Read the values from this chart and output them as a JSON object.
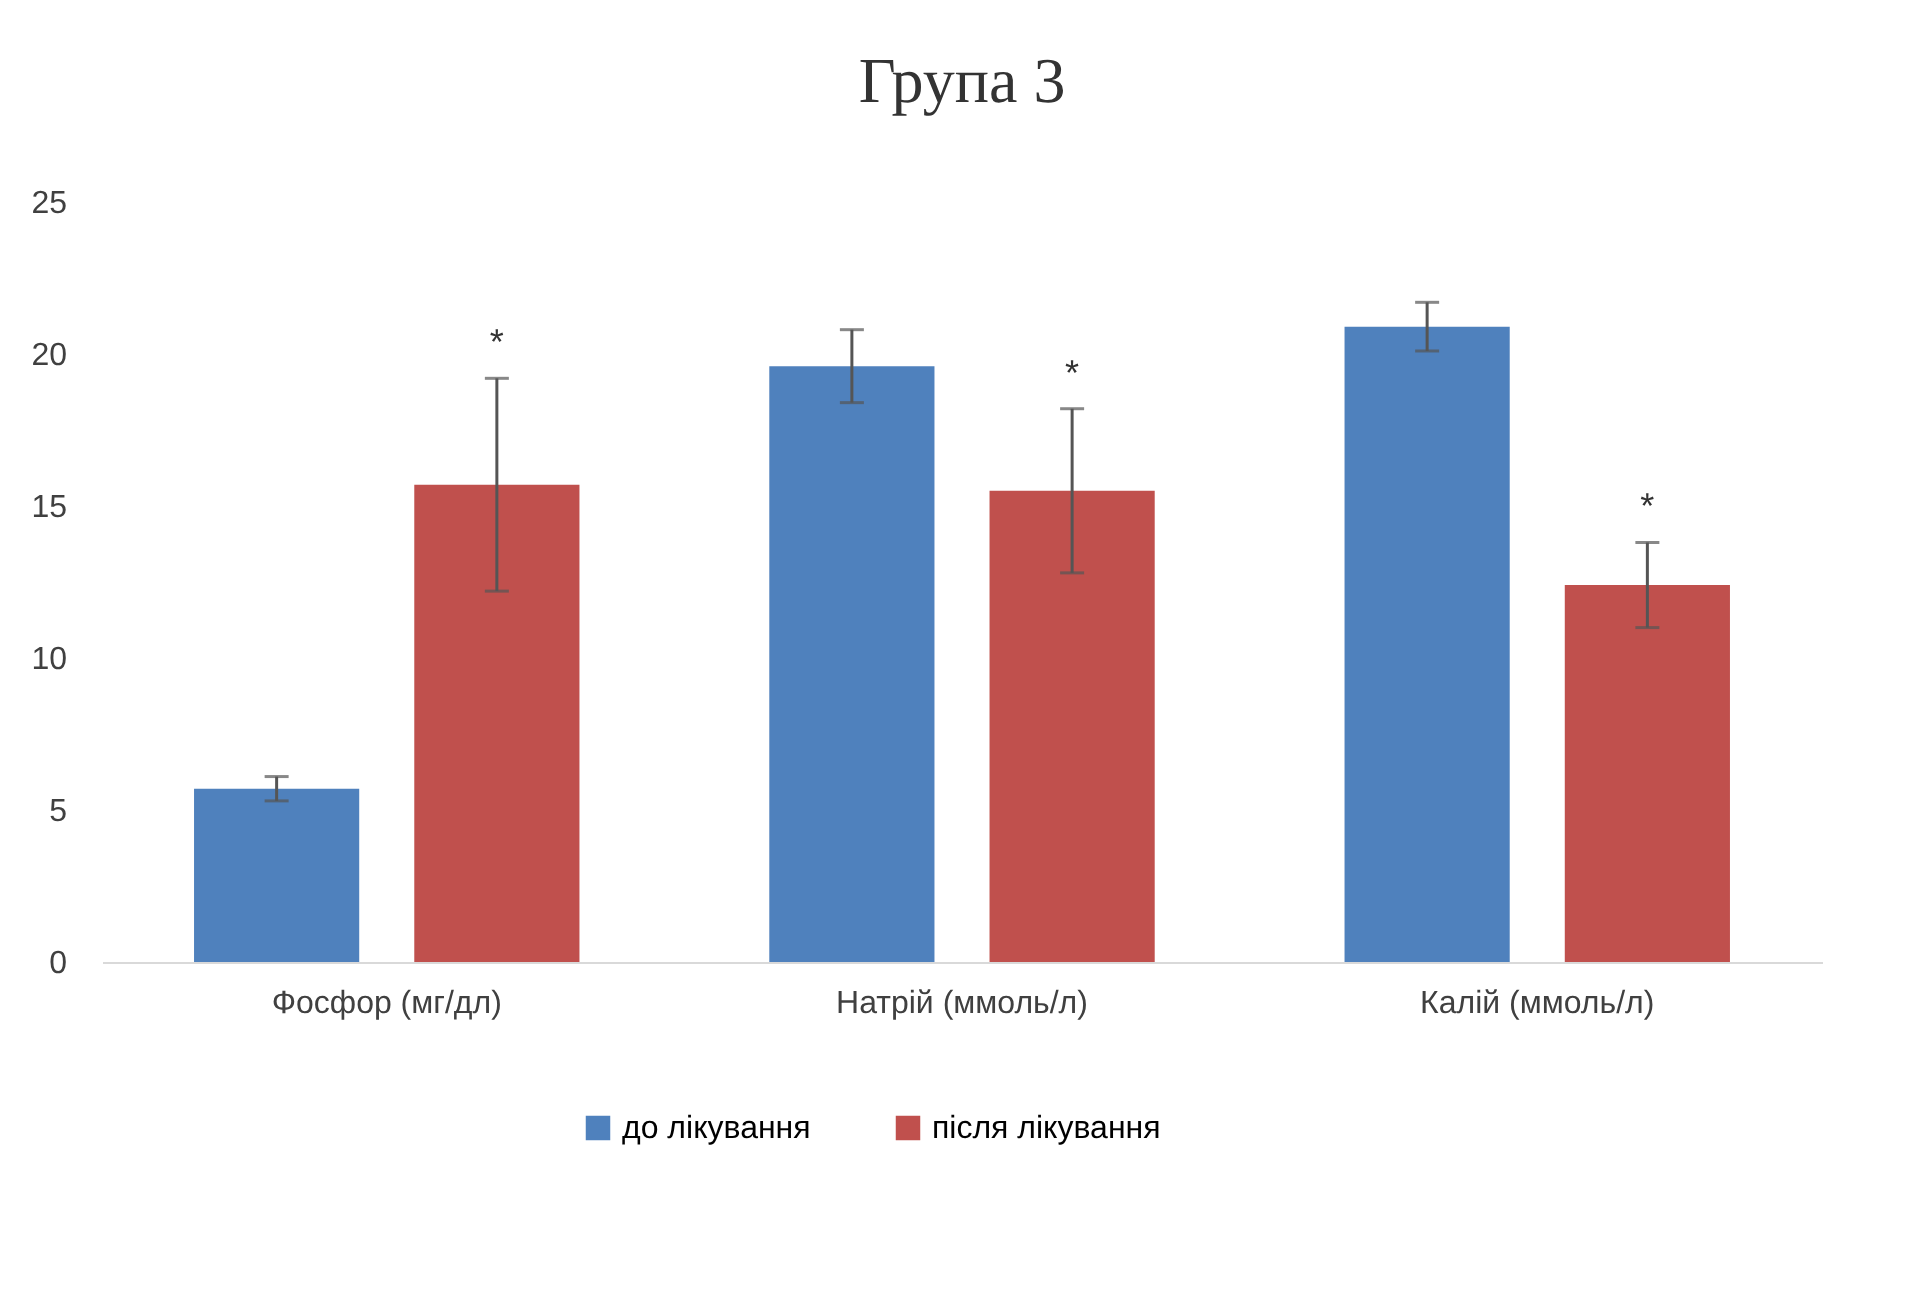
{
  "chart_data": {
    "type": "bar",
    "title": "Група 3",
    "categories": [
      "Фосфор (мг/дл)",
      "Натрій (ммоль/л)",
      "Калій (ммоль/л)"
    ],
    "series": [
      {
        "name": "до лікування",
        "color": "#4f81bd",
        "values": [
          5.7,
          19.6,
          20.9
        ],
        "errors": [
          0.4,
          1.2,
          0.8
        ]
      },
      {
        "name": "після лікування",
        "color": "#c0504d",
        "values": [
          15.7,
          15.5,
          12.4
        ],
        "errors": [
          3.5,
          2.7,
          1.4
        ]
      }
    ],
    "ylim": [
      0,
      25
    ],
    "yticks": [
      0,
      5,
      10,
      15,
      20,
      25
    ],
    "grid": false,
    "legend": "bottom",
    "annotations": [
      "*",
      "*",
      "*"
    ]
  }
}
